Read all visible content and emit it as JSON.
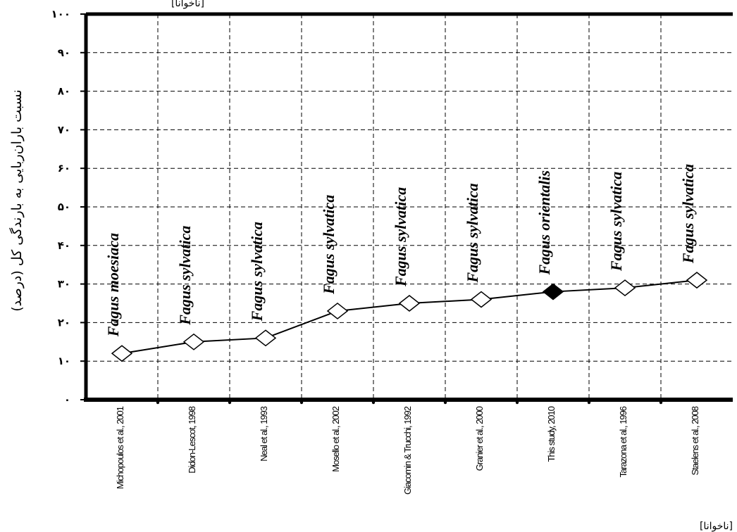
{
  "chart_data": {
    "type": "line",
    "ylabel": "نسبت باران‌ربایی به بارندگی کل (درصد)",
    "top_text": "[ناخوانا]",
    "bottom_text": "[ناخوانا]",
    "ylim": [
      0,
      100
    ],
    "yticks": [
      0,
      10,
      20,
      30,
      40,
      50,
      60,
      70,
      80,
      90,
      100
    ],
    "ytick_labels": [
      "٠",
      "١٠",
      "٢٠",
      "٣٠",
      "۴٠",
      "۵٠",
      "۶٠",
      "٧٠",
      "٨٠",
      "٩٠",
      "١٠٠"
    ],
    "grid": true,
    "categories": [
      "Michopoulos et al., 2001",
      "Didon-Lescot, 1998",
      "Neal et al., 1993",
      "Mosello et al., 2002",
      "Giacomin & Trucchi, 1992",
      "Granier et al., 2000",
      "This study, 2010",
      "Tarazona et al., 1996",
      "Staelens et al., 2008"
    ],
    "species": [
      "Fagus moesiaca",
      "Fagus sylvatica",
      "Fagus sylvatica",
      "Fagus sylvatica",
      "Fagus sylvatica",
      "Fagus sylvatica",
      "Fagus orientalis",
      "Fagus sylvatica",
      "Fagus sylvatica"
    ],
    "values": [
      12,
      15,
      16,
      23,
      25,
      26,
      28,
      29,
      31
    ],
    "highlight_index": 6,
    "colors": {
      "line": "#000000",
      "marker_fill": "#ffffff",
      "highlight_fill": "#000000",
      "grid": "#000000"
    }
  }
}
